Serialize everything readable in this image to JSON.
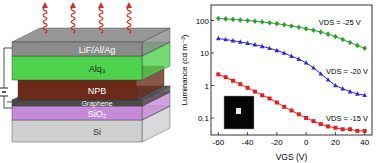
{
  "chart_data": {
    "type": "line",
    "x_label": "VGS (V)",
    "y_label": "Luminance (cd m⁻²)",
    "x": [
      -60,
      -55,
      -50,
      -45,
      -40,
      -35,
      -30,
      -25,
      -20,
      -15,
      -10,
      -5,
      0,
      5,
      10,
      15,
      20,
      25,
      30,
      35,
      40
    ],
    "series": [
      {
        "name": "VDS = -25 V",
        "color": "#2e9e2e",
        "marker": "diamond",
        "values": [
          115,
          112,
          108,
          104,
          100,
          95,
          90,
          85,
          80,
          74,
          68,
          62,
          56,
          50,
          44,
          38,
          32,
          26,
          21,
          17,
          14
        ]
      },
      {
        "name": "VDS = -20 V",
        "color": "#2b2bd0",
        "marker": "triangle",
        "values": [
          28,
          26,
          24,
          22,
          20,
          18,
          16,
          14,
          12,
          10,
          8,
          6.5,
          5,
          3.5,
          2.3,
          1.5,
          1.0,
          0.8,
          0.65,
          0.55,
          0.5
        ]
      },
      {
        "name": "VDS = -15 V",
        "color": "#e02020",
        "marker": "square",
        "values": [
          2.2,
          1.8,
          1.4,
          1.1,
          0.85,
          0.65,
          0.5,
          0.4,
          0.3,
          0.22,
          0.17,
          0.13,
          0.1,
          0.08,
          0.065,
          0.055,
          0.05,
          0.045,
          0.045,
          0.04,
          0.04
        ]
      }
    ],
    "xlim": [
      -65,
      45
    ],
    "xticks": [
      -60,
      -40,
      -20,
      0,
      20,
      40
    ],
    "ylim": [
      0.03,
      300
    ],
    "yticks": [
      0.1,
      1,
      10,
      100
    ],
    "log": "y"
  },
  "diagram": {
    "layers": [
      {
        "label": "LiF/Al/Ag",
        "color": "#8c8c8c"
      },
      {
        "label": "Alq₃",
        "color": "#4fd34f"
      },
      {
        "label": "NPB",
        "color": "#6b2a1a"
      },
      {
        "label": "Graphene",
        "color": "#4a4a4a"
      },
      {
        "label": "SiO₂",
        "color": "#c58ad8"
      },
      {
        "label": "Si",
        "color": "#d0d0d0"
      }
    ]
  }
}
